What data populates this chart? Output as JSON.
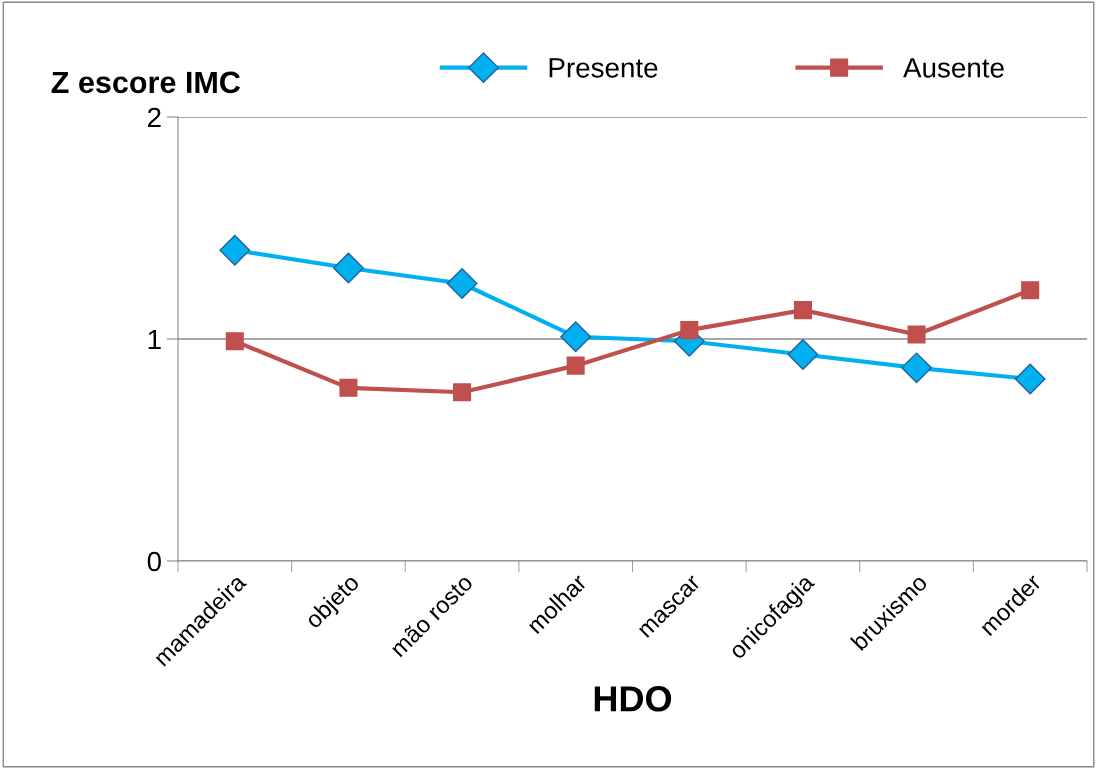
{
  "chart_data": {
    "type": "line",
    "ylabel": "Z escore IMC",
    "xlabel": "HDO",
    "categories": [
      "mamadeira",
      "objeto",
      "mão rosto",
      "molhar",
      "mascar",
      "onicofagia",
      "bruxismo",
      "morder"
    ],
    "series": [
      {
        "name": "Presente",
        "color": "#00b0f0",
        "marker": "diamond",
        "values": [
          1.4,
          1.32,
          1.25,
          1.01,
          0.99,
          0.93,
          0.87,
          0.82
        ]
      },
      {
        "name": "Ausente",
        "color": "#c0504d",
        "marker": "square",
        "values": [
          0.99,
          0.78,
          0.76,
          0.88,
          1.04,
          1.13,
          1.02,
          1.22
        ]
      }
    ],
    "ylim": [
      0,
      2
    ],
    "yticks": [
      0,
      1,
      2
    ],
    "grid": "y",
    "legend": "top"
  }
}
